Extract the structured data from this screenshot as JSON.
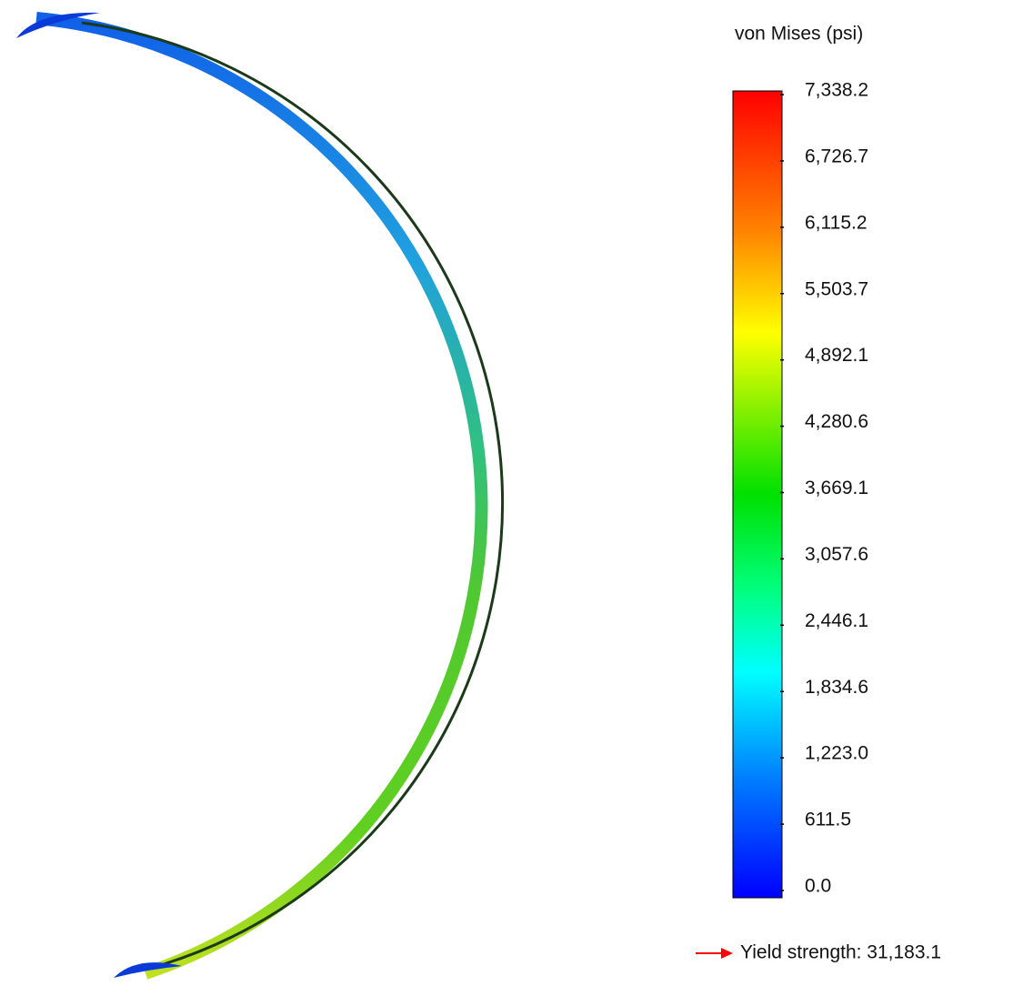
{
  "legend": {
    "title": "von Mises (psi)",
    "ticks": [
      "7,338.2",
      "6,726.7",
      "6,115.2",
      "5,503.7",
      "4,892.1",
      "4,280.6",
      "3,669.1",
      "3,057.6",
      "2,446.1",
      "1,834.6",
      "1,223.0",
      "611.5",
      "0.0"
    ],
    "yield": "Yield strength: 31,183.1"
  }
}
